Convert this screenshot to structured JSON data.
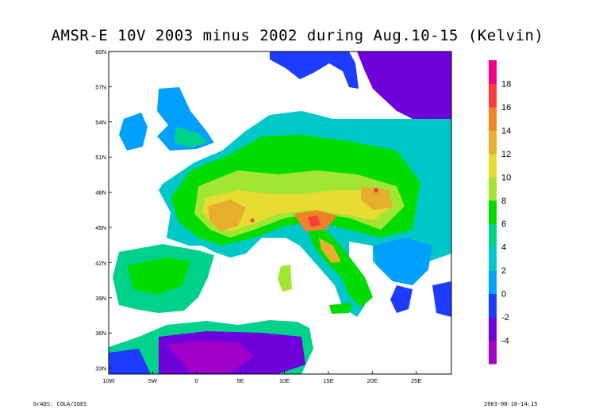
{
  "title": "AMSR-E 10V 2003 minus 2002 during Aug.10-15  (Kelvin)",
  "footer": {
    "left": "GrADS: COLA/IGES",
    "right": "2003-08-18-14:15"
  },
  "map": {
    "lat_labels": [
      "60N",
      "57N",
      "54N",
      "51N",
      "48N",
      "45N",
      "42N",
      "39N",
      "36N",
      "33N"
    ],
    "lat_values": [
      60,
      57,
      54,
      51,
      48,
      45,
      42,
      39,
      36,
      33
    ],
    "lon_labels": [
      "10W",
      "5W",
      "0",
      "5E",
      "10E",
      "15E",
      "20E",
      "25E"
    ],
    "lon_values": [
      -10,
      -5,
      0,
      5,
      10,
      15,
      20,
      25
    ],
    "lon_range": [
      -10,
      29
    ],
    "lat_range": [
      32.5,
      60
    ]
  },
  "colorbar": {
    "labels": [
      "18",
      "16",
      "14",
      "12",
      "10",
      "8",
      "6",
      "4",
      "2",
      "0",
      "-2",
      "-4"
    ],
    "colors": [
      "#a000c8",
      "#6e00dc",
      "#1e3cff",
      "#00a0ff",
      "#00c8c8",
      "#00d28c",
      "#00dc00",
      "#a0e632",
      "#e6dc32",
      "#e6af2d",
      "#f08228",
      "#fa3c3c",
      "#f00082"
    ]
  },
  "fields": {
    "colors": {
      "sea": "#ffffff",
      "coast": "#000000"
    }
  }
}
